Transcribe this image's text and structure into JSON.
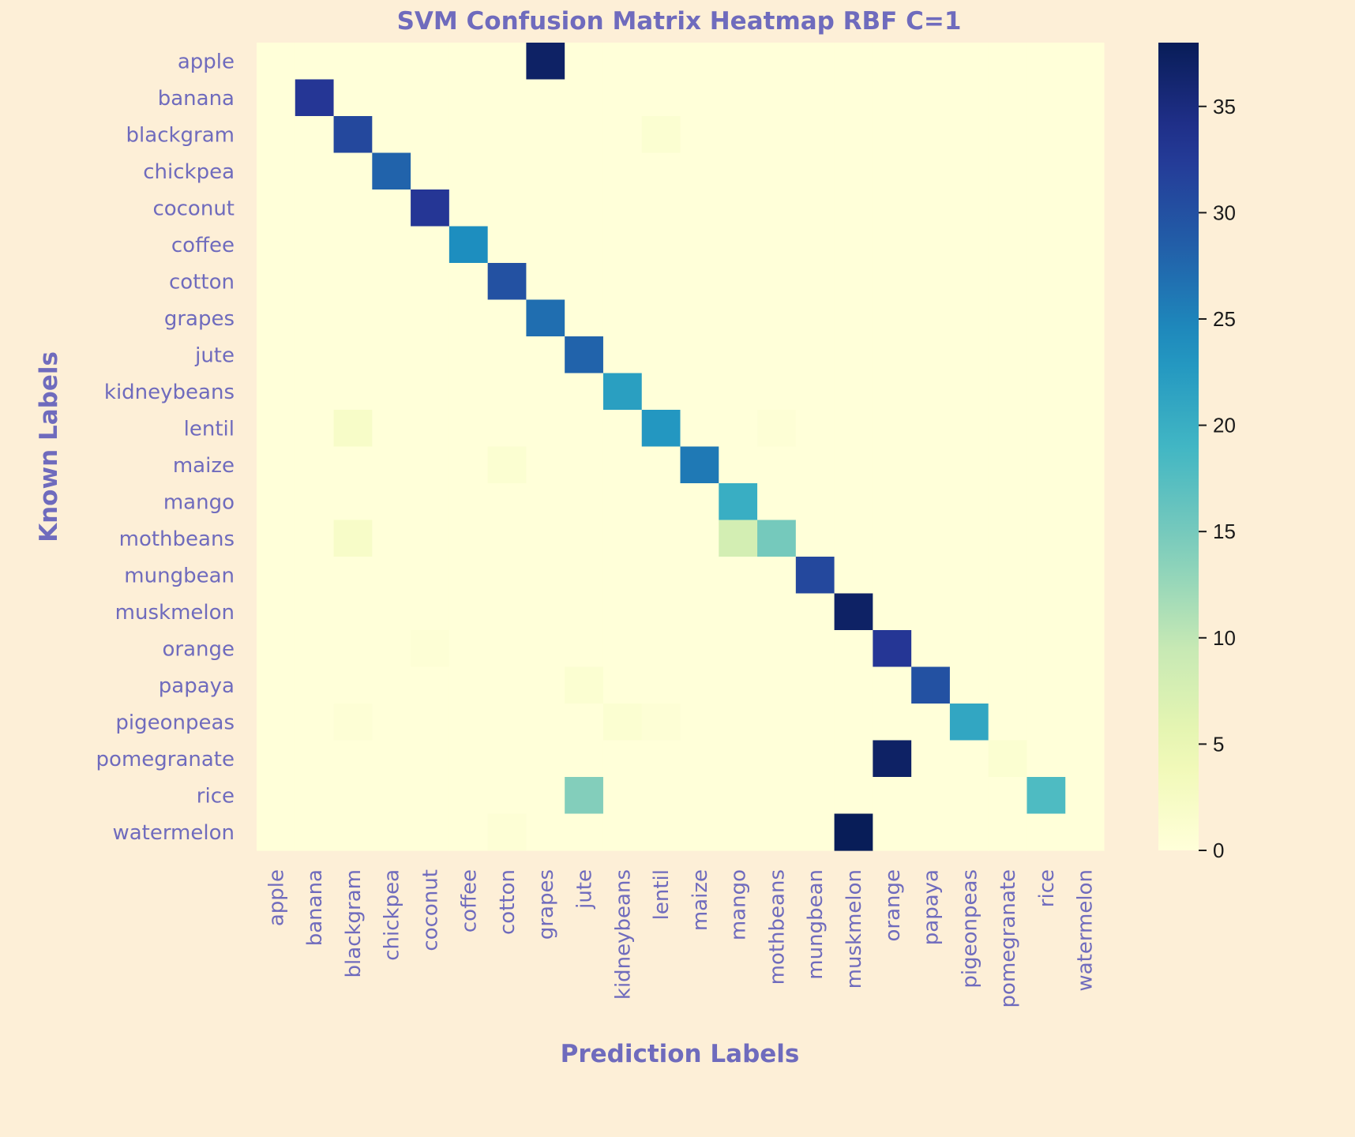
{
  "chart_data": {
    "type": "heatmap",
    "title": "SVM Confusion Matrix Heatmap RBF C=1",
    "xlabel": "Prediction Labels",
    "ylabel": "Known Labels",
    "row_labels": [
      "apple",
      "banana",
      "blackgram",
      "chickpea",
      "coconut",
      "coffee",
      "cotton",
      "grapes",
      "jute",
      "kidneybeans",
      "lentil",
      "maize",
      "mango",
      "mothbeans",
      "mungbean",
      "muskmelon",
      "orange",
      "papaya",
      "pigeonpeas",
      "pomegranate",
      "rice",
      "watermelon"
    ],
    "col_labels": [
      "apple",
      "banana",
      "blackgram",
      "chickpea",
      "coconut",
      "coffee",
      "cotton",
      "grapes",
      "jute",
      "kidneybeans",
      "lentil",
      "maize",
      "mango",
      "mothbeans",
      "mungbean",
      "muskmelon",
      "orange",
      "papaya",
      "pigeonpeas",
      "pomegranate",
      "rice",
      "watermelon"
    ],
    "matrix": [
      [
        0,
        0,
        0,
        0,
        0,
        0,
        0,
        37,
        0,
        0,
        0,
        0,
        0,
        0,
        0,
        0,
        0,
        0,
        0,
        0,
        0,
        0
      ],
      [
        0,
        33,
        0,
        0,
        0,
        0,
        0,
        0,
        0,
        0,
        0,
        0,
        0,
        0,
        0,
        0,
        0,
        0,
        0,
        0,
        0,
        0
      ],
      [
        0,
        0,
        31,
        0,
        0,
        0,
        0,
        0,
        0,
        0,
        1,
        0,
        0,
        0,
        0,
        0,
        0,
        0,
        0,
        0,
        0,
        0
      ],
      [
        0,
        0,
        0,
        28,
        0,
        0,
        0,
        0,
        0,
        0,
        0,
        0,
        0,
        0,
        0,
        0,
        0,
        0,
        0,
        0,
        0,
        0
      ],
      [
        0,
        0,
        0,
        0,
        33,
        0,
        0,
        0,
        0,
        0,
        0,
        0,
        0,
        0,
        0,
        0,
        0,
        0,
        0,
        0,
        0,
        0
      ],
      [
        0,
        0,
        0,
        0,
        0,
        24,
        0,
        0,
        0,
        0,
        0,
        0,
        0,
        0,
        0,
        0,
        0,
        0,
        0,
        0,
        0,
        0
      ],
      [
        0,
        0,
        0,
        0,
        0,
        0,
        30,
        0,
        0,
        0,
        0,
        0,
        0,
        0,
        0,
        0,
        0,
        0,
        0,
        0,
        0,
        0
      ],
      [
        0,
        0,
        0,
        0,
        0,
        0,
        0,
        27,
        0,
        0,
        0,
        0,
        0,
        0,
        0,
        0,
        0,
        0,
        0,
        0,
        0,
        0
      ],
      [
        0,
        0,
        0,
        0,
        0,
        0,
        0,
        0,
        28,
        0,
        0,
        0,
        0,
        0,
        0,
        0,
        0,
        0,
        0,
        0,
        0,
        0
      ],
      [
        0,
        0,
        0,
        0,
        0,
        0,
        0,
        0,
        0,
        22,
        0,
        0,
        0,
        0,
        0,
        0,
        0,
        0,
        0,
        0,
        0,
        0
      ],
      [
        0,
        0,
        2,
        0,
        0,
        0,
        0,
        0,
        0,
        0,
        23,
        0,
        0,
        0.5,
        0,
        0,
        0,
        0,
        0,
        0,
        0,
        0
      ],
      [
        0,
        0,
        0,
        0,
        0,
        0,
        1,
        0,
        0,
        0,
        0,
        26,
        0,
        0,
        0,
        0,
        0,
        0,
        0,
        0,
        0,
        0
      ],
      [
        0,
        0,
        0,
        0,
        0,
        0,
        0,
        0,
        0,
        0,
        0,
        0,
        20,
        0,
        0,
        0,
        0,
        0,
        0,
        0,
        0,
        0
      ],
      [
        0,
        0,
        2,
        0,
        0,
        0,
        0,
        0,
        0,
        0,
        0,
        0,
        8,
        15,
        0,
        0,
        0,
        0,
        0,
        0,
        0,
        0
      ],
      [
        0,
        0,
        0,
        0,
        0,
        0,
        0,
        0,
        0,
        0,
        0,
        0,
        0,
        0,
        31,
        0,
        0,
        0,
        0,
        0,
        0,
        0
      ],
      [
        0,
        0,
        0,
        0,
        0,
        0,
        0,
        0,
        0,
        0,
        0,
        0,
        0,
        0,
        0,
        37,
        0,
        0,
        0,
        0,
        0,
        0
      ],
      [
        0,
        0,
        0,
        0,
        0.5,
        0,
        0,
        0,
        0,
        0,
        0,
        0,
        0,
        0,
        0,
        0,
        33,
        0,
        0,
        0,
        0,
        0
      ],
      [
        0,
        0,
        0,
        0,
        0,
        0,
        0,
        0,
        1,
        0,
        0,
        0,
        0,
        0,
        0,
        0,
        0,
        30,
        0,
        0,
        0,
        0
      ],
      [
        0,
        0,
        0.5,
        0,
        0,
        0,
        0,
        0,
        0,
        1,
        0.5,
        0,
        0,
        0,
        0,
        0,
        0,
        0,
        21,
        0,
        0,
        0
      ],
      [
        0,
        0,
        0,
        0,
        0,
        0,
        0,
        0,
        0,
        0,
        0,
        0,
        0,
        0,
        0,
        0,
        37,
        0,
        0,
        1,
        0,
        0
      ],
      [
        0,
        0,
        0,
        0,
        0,
        0,
        0,
        0,
        14,
        0,
        0,
        0,
        0,
        0,
        0,
        0,
        0,
        0,
        0,
        0,
        18,
        0
      ],
      [
        0,
        0,
        0,
        0,
        0,
        0,
        0.5,
        0,
        0,
        0,
        0,
        0,
        0,
        0,
        0,
        38,
        0,
        0,
        0,
        0,
        0,
        0
      ]
    ],
    "colorbar": {
      "min": 0,
      "max": 38,
      "ticks": [
        0,
        5,
        10,
        15,
        20,
        25,
        30,
        35
      ],
      "colormap": "YlGnBu"
    },
    "grid": false
  },
  "colors": {
    "background": "#fdefd7",
    "label": "#6f6bbd",
    "colorbar_text": "#1a1a1a"
  }
}
